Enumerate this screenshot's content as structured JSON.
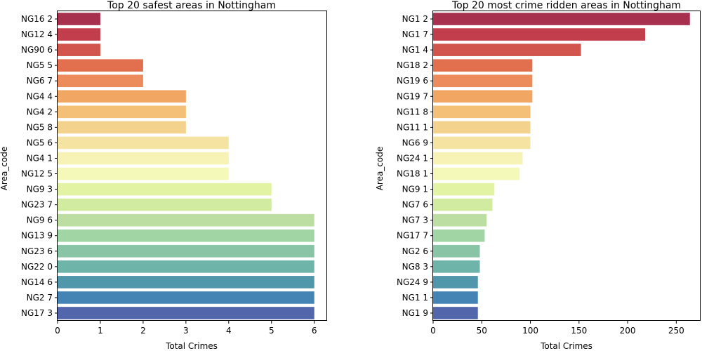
{
  "chart_data": [
    {
      "type": "bar",
      "orientation": "horizontal",
      "title": "Top 20 safest areas in Nottingham",
      "xlabel": "Total Crimes",
      "ylabel": "Area_code",
      "xlim": [
        0,
        6.3
      ],
      "xticks": [
        0,
        1,
        2,
        3,
        4,
        5,
        6
      ],
      "categories": [
        "NG16 2",
        "NG12 4",
        "NG90 6",
        "NG5 5",
        "NG6 7",
        "NG4 4",
        "NG4 2",
        "NG5 8",
        "NG5 6",
        "NG4 1",
        "NG12 5",
        "NG9 3",
        "NG23 7",
        "NG9 6",
        "NG13 9",
        "NG23 6",
        "NG22 0",
        "NG14 6",
        "NG2 7",
        "NG17 3"
      ],
      "values": [
        1,
        1,
        1,
        2,
        2,
        3,
        3,
        3,
        4,
        4,
        4,
        5,
        5,
        6,
        6,
        6,
        6,
        6,
        6,
        6
      ],
      "palette": "Spectral",
      "colors": [
        "#a8304f",
        "#c23e4d",
        "#d1554d",
        "#e2704e",
        "#ec8b5b",
        "#f2a663",
        "#f4bf77",
        "#f3d28e",
        "#f5e3a2",
        "#f7f2b5",
        "#f4f8b9",
        "#e3f3a4",
        "#d1eca0",
        "#bddea3",
        "#a2d5a4",
        "#88c4a5",
        "#6eb4a8",
        "#5197ac",
        "#4484b5",
        "#5266ab"
      ],
      "grid": false,
      "legend": null
    },
    {
      "type": "bar",
      "orientation": "horizontal",
      "title": "Top 20 most crime ridden areas in Nottingham",
      "xlabel": "Total Crimes",
      "ylabel": "Area_code",
      "xlim": [
        0,
        275
      ],
      "xticks": [
        0,
        50,
        100,
        150,
        200,
        250
      ],
      "categories": [
        "NG1 2",
        "NG1 7",
        "NG1 4",
        "NG18 2",
        "NG19 6",
        "NG19 7",
        "NG11 8",
        "NG11 1",
        "NG6 9",
        "NG24 1",
        "NG18 1",
        "NG9 1",
        "NG7 6",
        "NG7 3",
        "NG17 7",
        "NG2 6",
        "NG8 3",
        "NG24 9",
        "NG1 1",
        "NG1 9"
      ],
      "values": [
        264,
        218,
        152,
        102,
        102,
        102,
        100,
        100,
        100,
        92,
        89,
        63,
        61,
        55,
        53,
        48,
        48,
        46,
        46,
        46
      ],
      "palette": "Spectral",
      "colors": [
        "#a8304f",
        "#c23e4d",
        "#d1554d",
        "#e2704e",
        "#ec8b5b",
        "#f2a663",
        "#f4bf77",
        "#f3d28e",
        "#f5e3a2",
        "#f7f2b5",
        "#f4f8b9",
        "#e3f3a4",
        "#d1eca0",
        "#bddea3",
        "#a2d5a4",
        "#88c4a5",
        "#6eb4a8",
        "#5197ac",
        "#4484b5",
        "#5266ab"
      ],
      "grid": false,
      "legend": null
    }
  ]
}
